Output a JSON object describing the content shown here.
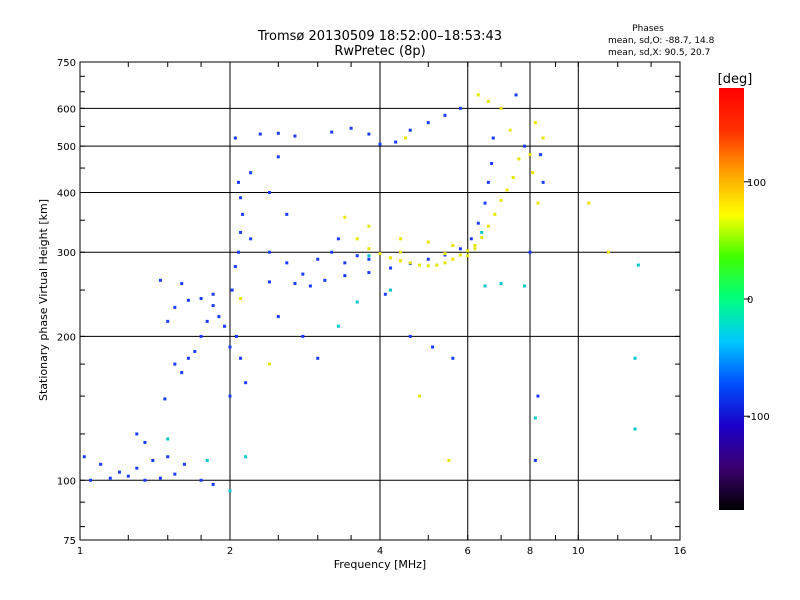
{
  "chart_data": {
    "type": "scatter",
    "title": "Tromsø 20130509 18:52:00–18:53:43",
    "subtitle": "RwPretec (8p)",
    "xlabel": "Frequency [MHz]",
    "ylabel": "Stationary phase Virtual Height [km]",
    "x_scale": "log",
    "y_scale": "log",
    "xlim": [
      1,
      16
    ],
    "ylim": [
      75,
      750
    ],
    "grid": true,
    "x_ticks": [
      1,
      2,
      4,
      6,
      8,
      10,
      16
    ],
    "y_ticks": [
      75,
      100,
      200,
      300,
      400,
      500,
      600,
      750
    ],
    "x_gridlines": [
      2,
      4,
      6,
      8,
      10
    ],
    "y_gridlines": [
      100,
      200,
      300,
      400,
      500,
      600
    ],
    "legend": {
      "title": "Phases",
      "lines": [
        "mean, sd,O: -88.7, 14.8",
        "mean, sd,X:  90.5, 20.7"
      ],
      "placement": "top-right"
    },
    "colorbar": {
      "label": "[deg]",
      "ticks": [
        100,
        0,
        -100
      ],
      "range": [
        -180,
        180
      ],
      "colors": [
        "#000000",
        "#3b0070",
        "#1a00c8",
        "#0050ff",
        "#00c8ff",
        "#00ff80",
        "#40ff00",
        "#ffff00",
        "#ffa000",
        "#ff3000",
        "#ff0000"
      ]
    },
    "series": [
      {
        "values": [
          [
            1.02,
            112
          ],
          [
            1.1,
            108
          ],
          [
            1.2,
            104
          ],
          [
            1.3,
            106
          ],
          [
            1.4,
            110
          ],
          [
            1.5,
            112
          ],
          [
            1.62,
            108
          ],
          [
            1.75,
            100
          ],
          [
            1.85,
            98
          ],
          [
            1.05,
            100
          ],
          [
            1.15,
            101
          ],
          [
            1.25,
            102
          ],
          [
            1.35,
            100
          ],
          [
            1.45,
            101
          ],
          [
            1.55,
            103
          ],
          [
            1.3,
            125
          ],
          [
            1.35,
            120
          ],
          [
            1.48,
            148
          ],
          [
            1.55,
            175
          ],
          [
            1.6,
            168
          ],
          [
            1.65,
            180
          ],
          [
            1.7,
            186
          ],
          [
            1.75,
            200
          ],
          [
            1.8,
            215
          ],
          [
            1.85,
            232
          ],
          [
            1.9,
            220
          ],
          [
            1.95,
            210
          ],
          [
            2.0,
            190
          ],
          [
            1.5,
            215
          ],
          [
            1.55,
            230
          ],
          [
            1.65,
            238
          ],
          [
            1.75,
            240
          ],
          [
            1.85,
            245
          ],
          [
            1.6,
            258
          ],
          [
            1.45,
            262
          ],
          [
            2.02,
            250
          ],
          [
            2.05,
            280
          ],
          [
            2.08,
            300
          ],
          [
            2.1,
            330
          ],
          [
            2.12,
            360
          ],
          [
            2.1,
            390
          ],
          [
            2.08,
            420
          ],
          [
            2.06,
            200
          ],
          [
            2.1,
            180
          ],
          [
            2.15,
            160
          ],
          [
            2.0,
            150
          ],
          [
            2.05,
            520
          ],
          [
            2.3,
            530
          ],
          [
            2.5,
            532
          ],
          [
            2.7,
            525
          ],
          [
            2.5,
            475
          ],
          [
            2.2,
            440
          ],
          [
            2.4,
            400
          ],
          [
            2.6,
            360
          ],
          [
            2.2,
            320
          ],
          [
            2.4,
            300
          ],
          [
            2.6,
            285
          ],
          [
            2.8,
            270
          ],
          [
            2.4,
            260
          ],
          [
            2.7,
            258
          ],
          [
            2.9,
            255
          ],
          [
            3.1,
            262
          ],
          [
            3.4,
            268
          ],
          [
            3.8,
            272
          ],
          [
            4.2,
            278
          ],
          [
            4.6,
            284
          ],
          [
            5.0,
            290
          ],
          [
            5.4,
            296
          ],
          [
            5.8,
            305
          ],
          [
            6.1,
            320
          ],
          [
            6.3,
            345
          ],
          [
            6.5,
            380
          ],
          [
            6.6,
            420
          ],
          [
            6.7,
            460
          ],
          [
            6.75,
            520
          ],
          [
            2.5,
            220
          ],
          [
            2.8,
            200
          ],
          [
            3.0,
            180
          ],
          [
            3.0,
            290
          ],
          [
            3.2,
            300
          ],
          [
            3.4,
            285
          ],
          [
            3.6,
            295
          ],
          [
            3.8,
            290
          ],
          [
            3.2,
            535
          ],
          [
            3.5,
            545
          ],
          [
            3.8,
            530
          ],
          [
            4.0,
            505
          ],
          [
            4.3,
            510
          ],
          [
            4.6,
            540
          ],
          [
            5.0,
            560
          ],
          [
            5.4,
            580
          ],
          [
            5.8,
            600
          ],
          [
            3.3,
            320
          ],
          [
            4.1,
            245
          ],
          [
            7.5,
            640
          ],
          [
            7.8,
            500
          ],
          [
            8.4,
            480
          ],
          [
            8.5,
            420
          ],
          [
            8.0,
            300
          ],
          [
            4.6,
            200
          ],
          [
            5.1,
            190
          ],
          [
            5.6,
            180
          ],
          [
            8.3,
            150
          ],
          [
            8.2,
            110
          ]
        ]
      },
      {
        "values": [
          [
            3.4,
            355
          ],
          [
            3.6,
            320
          ],
          [
            3.8,
            305
          ],
          [
            4.0,
            298
          ],
          [
            4.2,
            292
          ],
          [
            4.4,
            288
          ],
          [
            4.6,
            285
          ],
          [
            4.8,
            282
          ],
          [
            5.0,
            281
          ],
          [
            5.2,
            282
          ],
          [
            5.4,
            285
          ],
          [
            5.6,
            290
          ],
          [
            5.8,
            296
          ],
          [
            6.0,
            302
          ],
          [
            6.2,
            310
          ],
          [
            6.4,
            322
          ],
          [
            6.6,
            340
          ],
          [
            6.8,
            360
          ],
          [
            7.0,
            385
          ],
          [
            7.2,
            405
          ],
          [
            7.4,
            430
          ],
          [
            7.6,
            470
          ],
          [
            3.8,
            340
          ],
          [
            4.4,
            320
          ],
          [
            5.0,
            315
          ],
          [
            5.6,
            310
          ],
          [
            6.2,
            305
          ],
          [
            4.4,
            300
          ],
          [
            5.4,
            298
          ],
          [
            6.0,
            295
          ],
          [
            4.5,
            520
          ],
          [
            2.1,
            240
          ],
          [
            2.4,
            175
          ],
          [
            8.2,
            560
          ],
          [
            8.5,
            520
          ],
          [
            10.5,
            380
          ],
          [
            11.5,
            300
          ],
          [
            5.5,
            110
          ],
          [
            4.8,
            150
          ],
          [
            6.3,
            640
          ],
          [
            6.6,
            620
          ],
          [
            7.0,
            600
          ],
          [
            7.3,
            540
          ],
          [
            8.0,
            480
          ],
          [
            8.1,
            440
          ],
          [
            8.3,
            380
          ]
        ]
      },
      {
        "values": [
          [
            1.5,
            122
          ],
          [
            1.8,
            110
          ],
          [
            2.15,
            112
          ],
          [
            2.0,
            95
          ],
          [
            3.3,
            210
          ],
          [
            3.6,
            236
          ],
          [
            4.2,
            250
          ],
          [
            6.5,
            255
          ],
          [
            7.0,
            258
          ],
          [
            7.8,
            255
          ],
          [
            8.2,
            135
          ],
          [
            13.0,
            180
          ],
          [
            13.2,
            282
          ],
          [
            13.0,
            128
          ],
          [
            3.8,
            295
          ],
          [
            6.4,
            330
          ]
        ]
      }
    ]
  }
}
